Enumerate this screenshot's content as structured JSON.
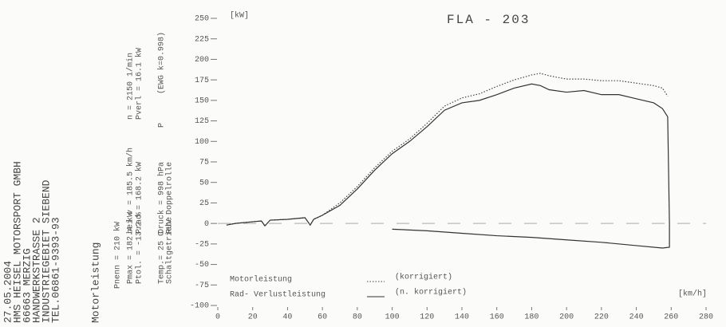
{
  "printout": {
    "date": "27.05.2004",
    "company": [
      "HMS HEISEL MOTORSPORT GMBH",
      "66663 MERZIG",
      "HANDWERKSTRASSE 2",
      "INDUSTRIEGEBIET SIEBEND",
      "TEL.06861-9393-93"
    ],
    "heading": "Motorleistung",
    "params": [
      "Pnenn = 210  kW",
      "Pmax = 182.4 kW",
      "Ptol. = -13.2 %",
      "Temp.= 25  C",
      "Schaltgetriebe",
      "bei v = 185.5 km/h",
      "Prad = 168.2 kW",
      "Druck = 998  hPa",
      "RUV Doppelrolle",
      "n = 2150 1/min",
      "Pverl = 16.1 kW",
      "P",
      "(EWG k=0.998)"
    ]
  },
  "chart_data": {
    "type": "line",
    "title": "FLA  -  203",
    "y_label": "[kW]",
    "x_label": "[km/h]",
    "xlim": [
      0,
      280
    ],
    "xticks": [
      0,
      20,
      40,
      60,
      80,
      100,
      120,
      140,
      160,
      180,
      200,
      220,
      240,
      260,
      280
    ],
    "ylim": [
      -100,
      250
    ],
    "yticks": [
      250,
      225,
      200,
      175,
      150,
      125,
      100,
      75,
      50,
      25,
      0,
      -25,
      -50,
      -75,
      -100
    ],
    "zero_line": true,
    "series": [
      {
        "name": "Motorleistung",
        "legend_suffix": "(korrigiert)",
        "color": "#444444",
        "dash": "1.5,2",
        "x": [
          5,
          10,
          20,
          25,
          27,
          30,
          40,
          50,
          53,
          55,
          60,
          70,
          80,
          90,
          100,
          110,
          120,
          130,
          140,
          150,
          160,
          170,
          180,
          185,
          190,
          200,
          210,
          220,
          230,
          240,
          250,
          255,
          258
        ],
        "values": [
          -2,
          0,
          2,
          3,
          -3,
          4,
          5,
          7,
          -2,
          5,
          10,
          25,
          45,
          68,
          88,
          103,
          122,
          143,
          153,
          158,
          167,
          175,
          181,
          183,
          180,
          176,
          176,
          174,
          174,
          171,
          168,
          165,
          155
        ]
      },
      {
        "name": "Rad- Verlustleistung",
        "legend_suffix": "(n. korrigiert)",
        "color": "#333333",
        "dash": "",
        "x": [
          5,
          10,
          20,
          25,
          27,
          30,
          40,
          50,
          53,
          55,
          60,
          70,
          80,
          90,
          100,
          110,
          120,
          130,
          140,
          150,
          160,
          170,
          180,
          185,
          190,
          200,
          210,
          220,
          230,
          240,
          250,
          255,
          258,
          259,
          259,
          255,
          240,
          220,
          200,
          180,
          160,
          140,
          120,
          100
        ],
        "values": [
          -2,
          0,
          2,
          3,
          -3,
          4,
          5,
          7,
          -2,
          5,
          10,
          22,
          42,
          65,
          85,
          100,
          118,
          138,
          147,
          150,
          157,
          165,
          170,
          168,
          163,
          160,
          162,
          157,
          157,
          152,
          147,
          140,
          130,
          0,
          -29,
          -30,
          -27,
          -23,
          -20,
          -17,
          -15,
          -12,
          -9,
          -7
        ]
      }
    ]
  }
}
